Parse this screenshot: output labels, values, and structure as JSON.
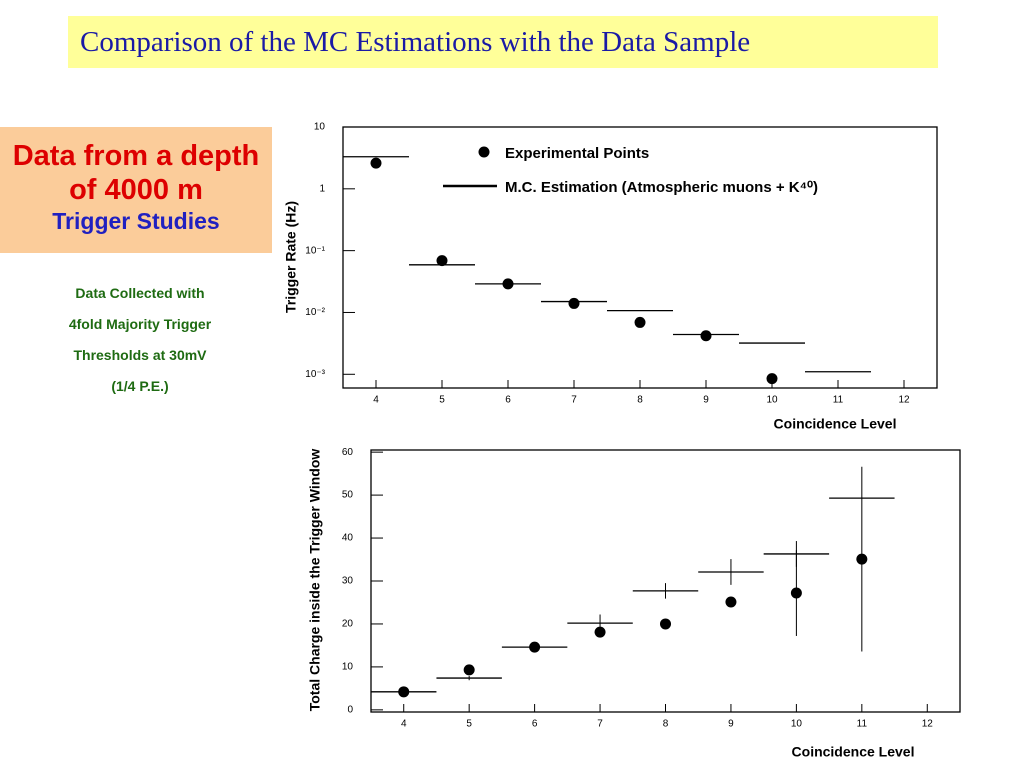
{
  "slide": {
    "title": "Comparison of the MC Estimations with the Data Sample",
    "headline": "Data from a depth of 4000 m",
    "subheadline": "Trigger Studies",
    "notes": [
      "Data Collected with",
      "4fold Majority  Trigger",
      "Thresholds at 30mV",
      "(1/4 P.E.)"
    ]
  },
  "chart_data": [
    {
      "type": "scatter",
      "xlabel": "Coincidence Level",
      "ylabel": "Trigger Rate (Hz)",
      "xlim": [
        3.5,
        12.5
      ],
      "xticks": [
        4,
        5,
        6,
        7,
        8,
        9,
        10,
        11,
        12
      ],
      "ylim": [
        0.0006,
        10
      ],
      "log_y": true,
      "legend": true,
      "yticks": [
        {
          "value": 0.001,
          "label": "10⁻³"
        },
        {
          "value": 0.01,
          "label": "10⁻²"
        },
        {
          "value": 0.1,
          "label": "10⁻¹"
        },
        1,
        10
      ],
      "series": [
        {
          "name": "Experimental Points",
          "color": "#000000",
          "marker": "dot",
          "x": [
            4,
            5,
            6,
            7,
            8,
            9,
            10
          ],
          "values": [
            2.6,
            0.069,
            0.029,
            0.014,
            0.0069,
            0.0042,
            0.00085
          ]
        },
        {
          "name": "M.C. Estimation (Atmospheric muons + K⁴⁰)",
          "color": "#000000",
          "marker": "hline",
          "x": [
            4,
            5,
            6,
            7,
            8,
            9,
            10,
            11
          ],
          "values": [
            3.3,
            0.059,
            0.029,
            0.015,
            0.0107,
            0.0044,
            0.0032,
            0.0011
          ]
        }
      ]
    },
    {
      "type": "scatter",
      "xlabel": "Coincidence Level",
      "ylabel": "Total Charge inside the Trigger Window",
      "xlim": [
        3.5,
        12.5
      ],
      "xticks": [
        4,
        5,
        6,
        7,
        8,
        9,
        10,
        11,
        12
      ],
      "ylim": [
        -0.5,
        60.5
      ],
      "yticks": [
        0,
        10,
        20,
        30,
        40,
        50,
        60
      ],
      "legend": false,
      "series": [
        {
          "color": "#000000",
          "marker": "dot",
          "x": [
            4,
            5,
            6,
            7,
            8,
            9,
            10,
            11
          ],
          "values": [
            4.2,
            9.3,
            14.6,
            18.1,
            20,
            25.1,
            27.2,
            35.1
          ],
          "errors": [
            0.5,
            0.8,
            0.8,
            0.8,
            0.8,
            1,
            10,
            21.5
          ]
        },
        {
          "color": "#000000",
          "marker": "hline",
          "x": [
            4,
            5,
            6,
            7,
            8,
            9,
            10,
            11
          ],
          "values": [
            4.2,
            7.4,
            14.6,
            20.2,
            27.7,
            32.1,
            36.3,
            49.3
          ],
          "errors": [
            0,
            0.5,
            0.5,
            2,
            1.8,
            3,
            3,
            0
          ]
        }
      ]
    }
  ]
}
